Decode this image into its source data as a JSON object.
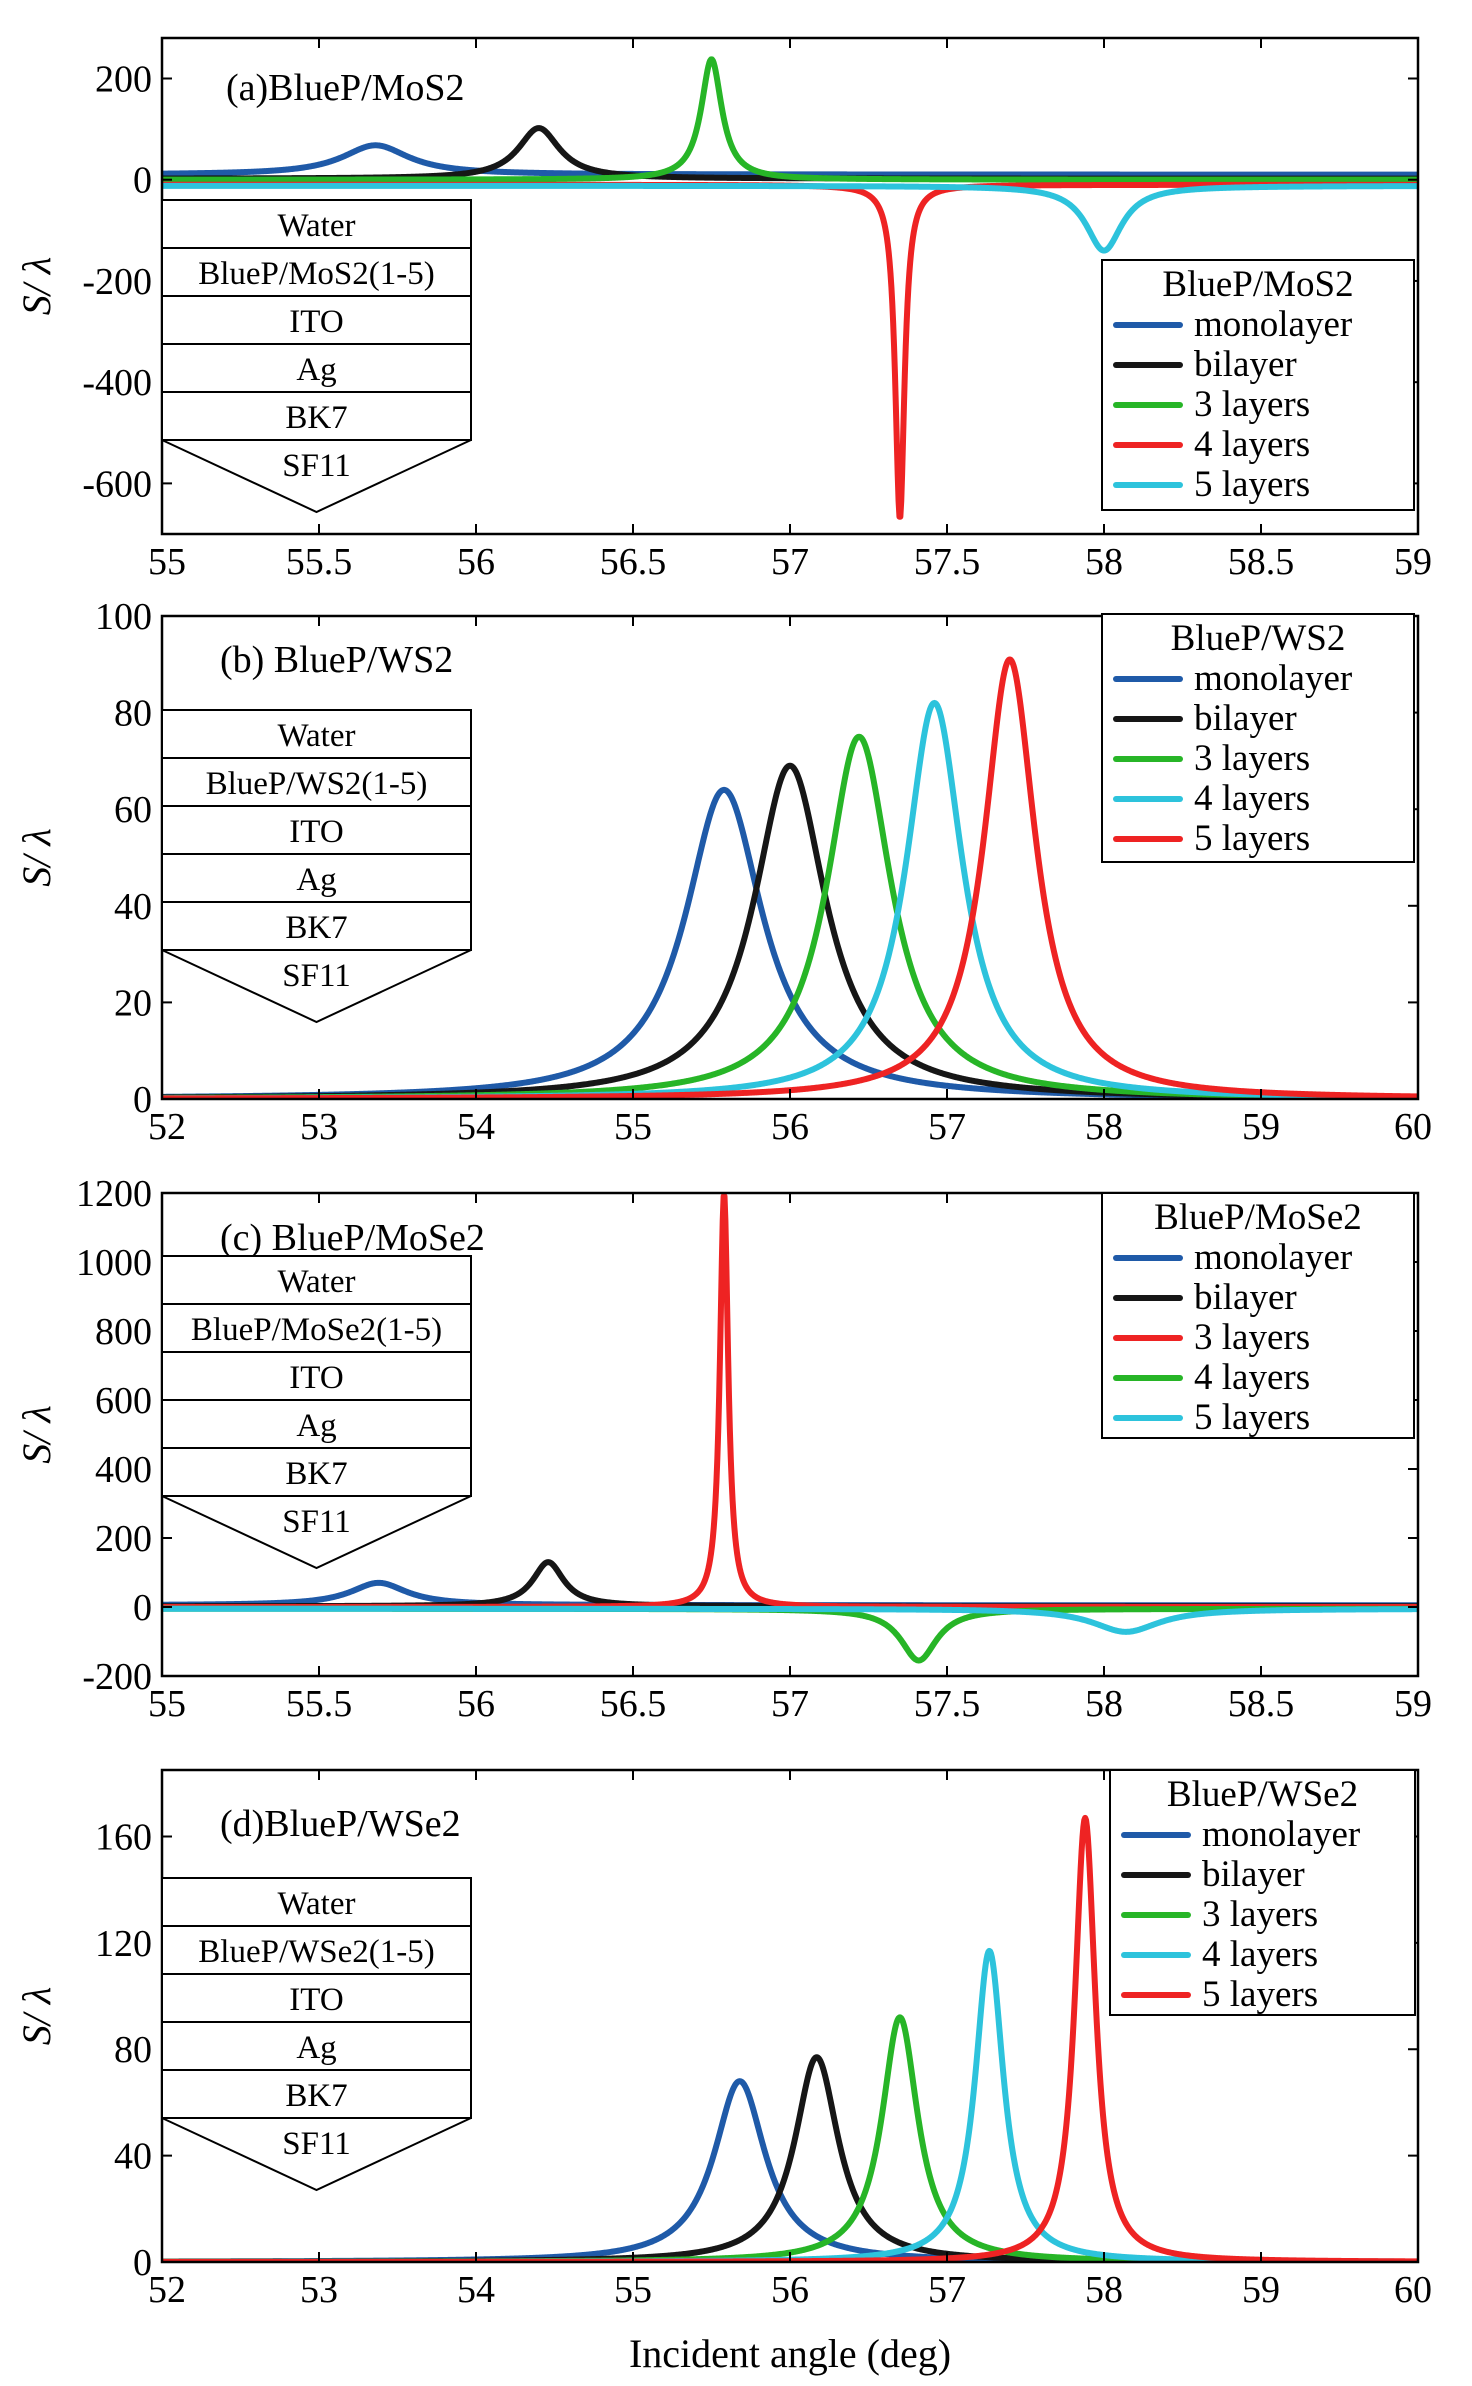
{
  "figure": {
    "x_title": "Incident angle (deg)",
    "y_title": "S/ λ"
  },
  "colors": {
    "blue": "#1f5aa8",
    "black": "#161616",
    "green": "#27b527",
    "red": "#ee2323",
    "cyan": "#2dc3dc"
  },
  "chart_data": [
    {
      "type": "line",
      "title": "(a)BlueP/MoS2",
      "xlabel": "",
      "ylabel": "S/ λ",
      "xlim": [
        55,
        59
      ],
      "ylim": [
        -700,
        280
      ],
      "xticks": [
        55,
        55.5,
        56,
        56.5,
        57,
        57.5,
        58,
        58.5,
        59
      ],
      "xtick_labels": [
        "55",
        "55.5",
        "56",
        "56.5",
        "57",
        "57.5",
        "58",
        "58.5",
        "59"
      ],
      "yticks": [
        -600,
        -400,
        -200,
        0,
        200
      ],
      "ytick_labels": [
        "-600",
        "-400",
        "-200",
        "0",
        "200"
      ],
      "legend_title": "BlueP/MoS2",
      "stack": [
        "Water",
        "BlueP/MoS2(1-5)",
        "ITO",
        "Ag",
        "BK7",
        "SF11"
      ],
      "series": [
        {
          "name": "monolayer",
          "color": "blue",
          "peak_x": 55.68,
          "peak_y": 68,
          "width": 0.13,
          "baseline": 10
        },
        {
          "name": "bilayer",
          "color": "black",
          "peak_x": 56.2,
          "peak_y": 102,
          "width": 0.08,
          "baseline": 2
        },
        {
          "name": "3 layers",
          "color": "green",
          "peak_x": 56.75,
          "peak_y": 238,
          "width": 0.04,
          "baseline": 0
        },
        {
          "name": "4 layers",
          "color": "red",
          "peak_x": 57.35,
          "peak_y": -670,
          "width": 0.018,
          "baseline": -10
        },
        {
          "name": "5 layers",
          "color": "cyan",
          "peak_x": 58.0,
          "peak_y": -140,
          "width": 0.07,
          "baseline": -12
        }
      ]
    },
    {
      "type": "line",
      "title": "(b) BlueP/WS2",
      "xlabel": "",
      "ylabel": "S/ λ",
      "xlim": [
        52,
        60
      ],
      "ylim": [
        0,
        100
      ],
      "xticks": [
        52,
        53,
        54,
        55,
        56,
        57,
        58,
        59,
        60
      ],
      "xtick_labels": [
        "52",
        "53",
        "54",
        "55",
        "56",
        "57",
        "58",
        "59",
        "60"
      ],
      "yticks": [
        0,
        20,
        40,
        60,
        80,
        100
      ],
      "ytick_labels": [
        "0",
        "20",
        "40",
        "60",
        "80",
        "100"
      ],
      "legend_title": "BlueP/WS2",
      "stack": [
        "Water",
        "BlueP/WS2(1-5)",
        "ITO",
        "Ag",
        "BK7",
        "SF11"
      ],
      "series": [
        {
          "name": "monolayer",
          "color": "blue",
          "peak_x": 55.58,
          "peak_y": 64,
          "width": 0.3,
          "baseline": 0
        },
        {
          "name": "bilayer",
          "color": "black",
          "peak_x": 56.0,
          "peak_y": 69,
          "width": 0.28,
          "baseline": 0
        },
        {
          "name": "3 layers",
          "color": "green",
          "peak_x": 56.44,
          "peak_y": 75,
          "width": 0.25,
          "baseline": 0
        },
        {
          "name": "4 layers",
          "color": "cyan",
          "peak_x": 56.92,
          "peak_y": 82,
          "width": 0.22,
          "baseline": 0
        },
        {
          "name": "5 layers",
          "color": "red",
          "peak_x": 57.4,
          "peak_y": 91,
          "width": 0.2,
          "baseline": 0
        }
      ]
    },
    {
      "type": "line",
      "title": "(c) BlueP/MoSe2",
      "xlabel": "",
      "ylabel": "S/ λ",
      "xlim": [
        55,
        59
      ],
      "ylim": [
        -200,
        1200
      ],
      "xticks": [
        55,
        55.5,
        56,
        56.5,
        57,
        57.5,
        58,
        58.5,
        59
      ],
      "xtick_labels": [
        "55",
        "55.5",
        "56",
        "56.5",
        "57",
        "57.5",
        "58",
        "58.5",
        "59"
      ],
      "yticks": [
        -200,
        0,
        200,
        400,
        600,
        800,
        1000,
        1200
      ],
      "ytick_labels": [
        "-200",
        "0",
        "200",
        "400",
        "600",
        "800",
        "1000",
        "1200"
      ],
      "legend_title": "BlueP/MoSe2",
      "stack": [
        "Water",
        "BlueP/MoSe2(1-5)",
        "ITO",
        "Ag",
        "BK7",
        "SF11"
      ],
      "series": [
        {
          "name": "monolayer",
          "color": "blue",
          "peak_x": 55.69,
          "peak_y": 70,
          "width": 0.11,
          "baseline": 5
        },
        {
          "name": "bilayer",
          "color": "black",
          "peak_x": 56.23,
          "peak_y": 130,
          "width": 0.06,
          "baseline": 2
        },
        {
          "name": "3 layers",
          "color": "red",
          "peak_x": 56.79,
          "peak_y": 1200,
          "width": 0.016,
          "baseline": 0
        },
        {
          "name": "4 layers",
          "color": "green",
          "peak_x": 57.41,
          "peak_y": -155,
          "width": 0.07,
          "baseline": -5
        },
        {
          "name": "5 layers",
          "color": "cyan",
          "peak_x": 58.07,
          "peak_y": -72,
          "width": 0.13,
          "baseline": -5
        }
      ]
    },
    {
      "type": "line",
      "title": "(d)BlueP/WSe2",
      "xlabel": "Incident angle (deg)",
      "ylabel": "S/ λ",
      "xlim": [
        52,
        60
      ],
      "ylim": [
        0,
        185
      ],
      "xticks": [
        52,
        53,
        54,
        55,
        56,
        57,
        58,
        59,
        60
      ],
      "xtick_labels": [
        "52",
        "53",
        "54",
        "55",
        "56",
        "57",
        "58",
        "59",
        "60"
      ],
      "yticks": [
        0,
        40,
        80,
        120,
        160
      ],
      "ytick_labels": [
        "0",
        "40",
        "80",
        "120",
        "160"
      ],
      "legend_title": "BlueP/WSe2",
      "stack": [
        "Water",
        "BlueP/WSe2(1-5)",
        "ITO",
        "Ag",
        "BK7",
        "SF11"
      ],
      "series": [
        {
          "name": "monolayer",
          "color": "blue",
          "peak_x": 55.68,
          "peak_y": 68,
          "width": 0.2,
          "baseline": 0
        },
        {
          "name": "bilayer",
          "color": "black",
          "peak_x": 56.17,
          "peak_y": 77,
          "width": 0.17,
          "baseline": 0
        },
        {
          "name": "3 layers",
          "color": "green",
          "peak_x": 56.7,
          "peak_y": 92,
          "width": 0.14,
          "baseline": 0
        },
        {
          "name": "4 layers",
          "color": "cyan",
          "peak_x": 57.27,
          "peak_y": 117,
          "width": 0.11,
          "baseline": 0
        },
        {
          "name": "5 layers",
          "color": "red",
          "peak_x": 57.88,
          "peak_y": 167,
          "width": 0.08,
          "baseline": 0
        }
      ]
    }
  ]
}
